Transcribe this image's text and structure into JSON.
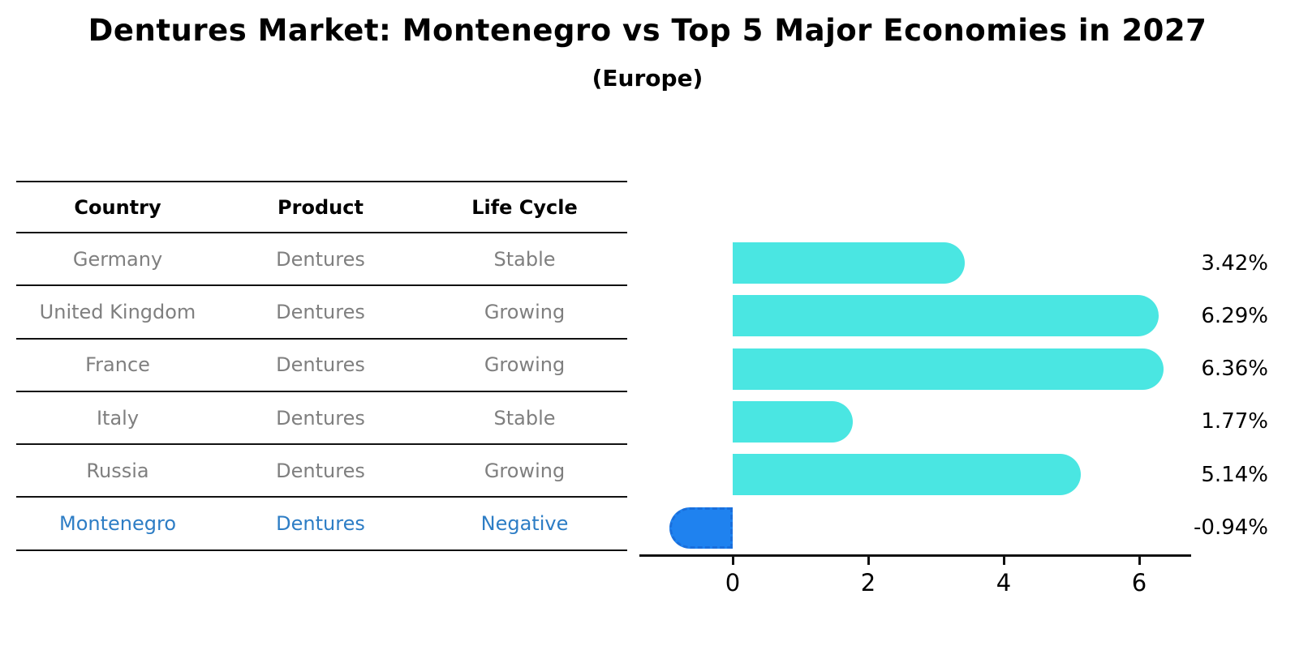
{
  "page": {
    "title": "Dentures Market: Montenegro vs Top 5 Major Economies in 2027",
    "subtitle": "(Europe)"
  },
  "table": {
    "headers": [
      "Country",
      "Product",
      "Life Cycle"
    ],
    "rows": [
      {
        "country": "Germany",
        "product": "Dentures",
        "life_cycle": "Stable",
        "highlight": false
      },
      {
        "country": "United Kingdom",
        "product": "Dentures",
        "life_cycle": "Growing",
        "highlight": false
      },
      {
        "country": "France",
        "product": "Dentures",
        "life_cycle": "Growing",
        "highlight": false
      },
      {
        "country": "Italy",
        "product": "Dentures",
        "life_cycle": "Stable",
        "highlight": false
      },
      {
        "country": "Russia",
        "product": "Dentures",
        "life_cycle": "Growing",
        "highlight": false
      },
      {
        "country": "Montenegro",
        "product": "Dentures",
        "life_cycle": "Negative",
        "highlight": true
      }
    ]
  },
  "chart_data": {
    "type": "bar",
    "orientation": "horizontal",
    "title": "Dentures Market: Montenegro vs Top 5 Major Economies in 2027",
    "subtitle": "(Europe)",
    "categories": [
      "Germany",
      "United Kingdom",
      "France",
      "Italy",
      "Russia",
      "Montenegro"
    ],
    "values": [
      3.42,
      6.29,
      6.36,
      1.77,
      5.14,
      -0.94
    ],
    "value_labels": [
      "3.42%",
      "6.29%",
      "6.36%",
      "1.77%",
      "5.14%",
      "-0.94%"
    ],
    "unit": "percent",
    "x_ticks": [
      0,
      2,
      4,
      6
    ],
    "xlim": [
      -1.38,
      6.77
    ],
    "grid": false,
    "legend": "none",
    "colors": {
      "positive_bar": "#4ae6e2",
      "negative_bar_fill": "#1f82ef",
      "negative_bar_border": "#1a6fdc",
      "highlight_text": "#2d7dc5",
      "row_text": "#7f7f7f",
      "axis": "#111111"
    }
  }
}
